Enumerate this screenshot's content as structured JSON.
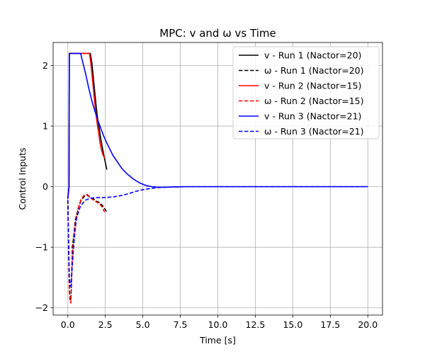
{
  "chart_data": {
    "type": "line",
    "title": "MPC: v and ω vs Time",
    "xlabel": "Time [s]",
    "ylabel": "Control Inputs",
    "xlim": [
      -0.98,
      20.98
    ],
    "ylim": [
      -2.12,
      2.38
    ],
    "xticks": [
      0.0,
      2.5,
      5.0,
      7.5,
      10.0,
      12.5,
      15.0,
      17.5,
      20.0
    ],
    "xtick_labels": [
      "0.0",
      "2.5",
      "5.0",
      "7.5",
      "10.0",
      "12.5",
      "15.0",
      "17.5",
      "20.0"
    ],
    "yticks": [
      -2,
      -1,
      0,
      1,
      2
    ],
    "ytick_labels": [
      "−2",
      "−1",
      "0",
      "1",
      "2"
    ],
    "grid": true,
    "legend_position": "top-right",
    "series": [
      {
        "name": "v - Run 1 (Nactor=20)",
        "color": "#000000",
        "dash": "solid",
        "points": [
          [
            0.0,
            -0.2
          ],
          [
            0.08,
            0.0
          ],
          [
            0.1,
            2.2
          ],
          [
            0.4,
            2.2
          ],
          [
            0.8,
            2.2
          ],
          [
            1.2,
            2.2
          ],
          [
            1.5,
            2.2
          ],
          [
            1.6,
            2.05
          ],
          [
            1.7,
            1.8
          ],
          [
            1.8,
            1.55
          ],
          [
            1.9,
            1.3
          ],
          [
            2.0,
            1.1
          ],
          [
            2.1,
            0.95
          ],
          [
            2.2,
            0.78
          ],
          [
            2.3,
            0.65
          ],
          [
            2.4,
            0.52
          ],
          [
            2.5,
            0.4
          ],
          [
            2.6,
            0.28
          ]
        ]
      },
      {
        "name": "ω - Run 1 (Nactor=20)",
        "color": "#000000",
        "dash": "dashed",
        "points": [
          [
            0.0,
            -0.22
          ],
          [
            0.05,
            -0.9
          ],
          [
            0.1,
            -1.7
          ],
          [
            0.15,
            -1.85
          ],
          [
            0.2,
            -1.88
          ],
          [
            0.25,
            -1.55
          ],
          [
            0.3,
            -1.0
          ],
          [
            0.4,
            -0.8
          ],
          [
            0.5,
            -0.55
          ],
          [
            0.7,
            -0.35
          ],
          [
            0.9,
            -0.22
          ],
          [
            1.1,
            -0.16
          ],
          [
            1.3,
            -0.14
          ],
          [
            1.5,
            -0.18
          ],
          [
            1.7,
            -0.2
          ],
          [
            1.9,
            -0.24
          ],
          [
            2.1,
            -0.26
          ],
          [
            2.3,
            -0.31
          ],
          [
            2.5,
            -0.38
          ],
          [
            2.6,
            -0.42
          ]
        ]
      },
      {
        "name": "v - Run 2 (Nactor=15)",
        "color": "#ff0000",
        "dash": "solid",
        "points": [
          [
            0.0,
            -0.2
          ],
          [
            0.08,
            0.0
          ],
          [
            0.1,
            2.2
          ],
          [
            0.4,
            2.2
          ],
          [
            0.8,
            2.2
          ],
          [
            1.2,
            2.2
          ],
          [
            1.45,
            2.2
          ],
          [
            1.55,
            2.0
          ],
          [
            1.65,
            1.75
          ],
          [
            1.75,
            1.5
          ],
          [
            1.85,
            1.25
          ],
          [
            1.95,
            1.05
          ],
          [
            2.05,
            0.9
          ],
          [
            2.15,
            0.72
          ],
          [
            2.25,
            0.6
          ],
          [
            2.35,
            0.52
          ],
          [
            2.45,
            0.47
          ]
        ]
      },
      {
        "name": "ω - Run 2 (Nactor=15)",
        "color": "#ff0000",
        "dash": "dashed",
        "points": [
          [
            0.0,
            -0.22
          ],
          [
            0.05,
            -1.0
          ],
          [
            0.1,
            -1.75
          ],
          [
            0.15,
            -1.9
          ],
          [
            0.2,
            -1.92
          ],
          [
            0.25,
            -1.6
          ],
          [
            0.3,
            -1.1
          ],
          [
            0.4,
            -0.85
          ],
          [
            0.5,
            -0.6
          ],
          [
            0.7,
            -0.35
          ],
          [
            0.9,
            -0.2
          ],
          [
            1.1,
            -0.14
          ],
          [
            1.3,
            -0.13
          ],
          [
            1.5,
            -0.18
          ],
          [
            1.7,
            -0.22
          ],
          [
            1.9,
            -0.25
          ],
          [
            2.1,
            -0.28
          ],
          [
            2.3,
            -0.34
          ],
          [
            2.45,
            -0.42
          ]
        ]
      },
      {
        "name": "v - Run 3 (Nactor=21)",
        "color": "#0000ff",
        "dash": "solid",
        "points": [
          [
            0.0,
            -0.2
          ],
          [
            0.08,
            0.0
          ],
          [
            0.1,
            2.2
          ],
          [
            0.4,
            2.2
          ],
          [
            0.7,
            2.2
          ],
          [
            0.85,
            2.2
          ],
          [
            1.0,
            2.05
          ],
          [
            1.2,
            1.85
          ],
          [
            1.4,
            1.62
          ],
          [
            1.6,
            1.42
          ],
          [
            1.8,
            1.25
          ],
          [
            2.0,
            1.1
          ],
          [
            2.2,
            0.96
          ],
          [
            2.4,
            0.83
          ],
          [
            2.6,
            0.72
          ],
          [
            2.8,
            0.62
          ],
          [
            3.0,
            0.52
          ],
          [
            3.3,
            0.41
          ],
          [
            3.6,
            0.3
          ],
          [
            4.0,
            0.2
          ],
          [
            4.4,
            0.12
          ],
          [
            4.8,
            0.06
          ],
          [
            5.2,
            0.02
          ],
          [
            5.6,
            0.0
          ],
          [
            6.0,
            -0.01
          ],
          [
            6.5,
            -0.01
          ],
          [
            7.0,
            -0.005
          ],
          [
            8.0,
            0.0
          ],
          [
            10.0,
            0.0
          ],
          [
            12.0,
            0.0
          ],
          [
            14.0,
            0.0
          ],
          [
            16.0,
            0.0
          ],
          [
            18.0,
            0.0
          ],
          [
            20.0,
            0.0
          ]
        ]
      },
      {
        "name": "ω - Run 3 (Nactor=21)",
        "color": "#0000ff",
        "dash": "dashed",
        "points": [
          [
            0.0,
            -0.22
          ],
          [
            0.05,
            -0.9
          ],
          [
            0.1,
            -1.5
          ],
          [
            0.15,
            -1.65
          ],
          [
            0.2,
            -1.62
          ],
          [
            0.3,
            -1.3
          ],
          [
            0.4,
            -0.95
          ],
          [
            0.5,
            -0.68
          ],
          [
            0.6,
            -0.5
          ],
          [
            0.8,
            -0.35
          ],
          [
            1.0,
            -0.27
          ],
          [
            1.2,
            -0.22
          ],
          [
            1.5,
            -0.19
          ],
          [
            2.0,
            -0.18
          ],
          [
            2.5,
            -0.18
          ],
          [
            3.0,
            -0.17
          ],
          [
            3.5,
            -0.15
          ],
          [
            4.0,
            -0.12
          ],
          [
            4.5,
            -0.08
          ],
          [
            5.0,
            -0.05
          ],
          [
            5.5,
            -0.03
          ],
          [
            6.0,
            -0.015
          ],
          [
            6.5,
            -0.01
          ],
          [
            7.0,
            -0.005
          ],
          [
            8.0,
            0.0
          ],
          [
            10.0,
            0.0
          ],
          [
            12.0,
            0.0
          ],
          [
            14.0,
            0.0
          ],
          [
            16.0,
            0.0
          ],
          [
            18.0,
            0.0
          ],
          [
            20.0,
            0.0
          ]
        ]
      }
    ]
  }
}
